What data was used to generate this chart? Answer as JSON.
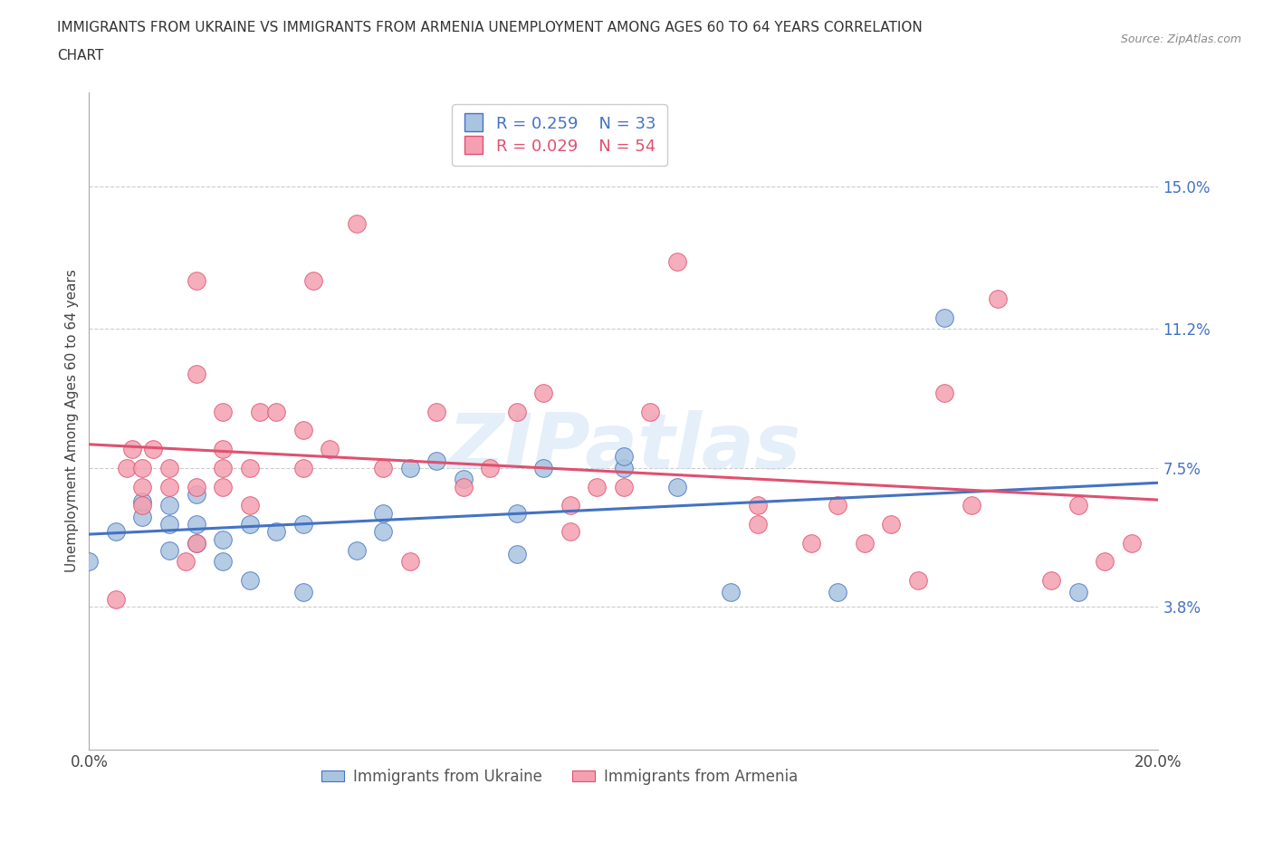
{
  "title_line1": "IMMIGRANTS FROM UKRAINE VS IMMIGRANTS FROM ARMENIA UNEMPLOYMENT AMONG AGES 60 TO 64 YEARS CORRELATION",
  "title_line2": "CHART",
  "source": "Source: ZipAtlas.com",
  "ylabel": "Unemployment Among Ages 60 to 64 years",
  "xlim": [
    0.0,
    0.2
  ],
  "ylim": [
    0.0,
    0.175
  ],
  "yticks": [
    0.038,
    0.075,
    0.112,
    0.15
  ],
  "ytick_labels": [
    "3.8%",
    "7.5%",
    "11.2%",
    "15.0%"
  ],
  "xticks": [
    0.0,
    0.05,
    0.1,
    0.15,
    0.2
  ],
  "xtick_labels": [
    "0.0%",
    "",
    "",
    "",
    "20.0%"
  ],
  "ukraine_color": "#a8c4e0",
  "armenia_color": "#f4a0b0",
  "ukraine_label": "Immigrants from Ukraine",
  "armenia_label": "Immigrants from Armenia",
  "ukraine_R": 0.259,
  "ukraine_N": 33,
  "armenia_R": 0.029,
  "armenia_N": 54,
  "ukraine_line_color": "#4472c4",
  "armenia_line_color": "#e05070",
  "watermark_text": "ZIPatlas",
  "ukraine_x": [
    0.0,
    0.005,
    0.01,
    0.01,
    0.015,
    0.015,
    0.015,
    0.02,
    0.02,
    0.02,
    0.025,
    0.025,
    0.03,
    0.03,
    0.035,
    0.04,
    0.04,
    0.05,
    0.055,
    0.055,
    0.06,
    0.065,
    0.07,
    0.08,
    0.08,
    0.085,
    0.1,
    0.1,
    0.11,
    0.12,
    0.14,
    0.16,
    0.185
  ],
  "ukraine_y": [
    0.05,
    0.058,
    0.062,
    0.066,
    0.053,
    0.06,
    0.065,
    0.055,
    0.06,
    0.068,
    0.05,
    0.056,
    0.045,
    0.06,
    0.058,
    0.042,
    0.06,
    0.053,
    0.058,
    0.063,
    0.075,
    0.077,
    0.072,
    0.052,
    0.063,
    0.075,
    0.075,
    0.078,
    0.07,
    0.042,
    0.042,
    0.115,
    0.042
  ],
  "armenia_x": [
    0.005,
    0.007,
    0.008,
    0.01,
    0.01,
    0.01,
    0.012,
    0.015,
    0.015,
    0.018,
    0.02,
    0.02,
    0.02,
    0.02,
    0.025,
    0.025,
    0.025,
    0.025,
    0.03,
    0.03,
    0.032,
    0.035,
    0.04,
    0.04,
    0.042,
    0.045,
    0.05,
    0.055,
    0.06,
    0.065,
    0.07,
    0.075,
    0.08,
    0.085,
    0.09,
    0.09,
    0.095,
    0.1,
    0.105,
    0.11,
    0.125,
    0.125,
    0.135,
    0.14,
    0.145,
    0.15,
    0.155,
    0.16,
    0.165,
    0.17,
    0.18,
    0.185,
    0.19,
    0.195
  ],
  "armenia_y": [
    0.04,
    0.075,
    0.08,
    0.065,
    0.07,
    0.075,
    0.08,
    0.07,
    0.075,
    0.05,
    0.055,
    0.07,
    0.1,
    0.125,
    0.07,
    0.075,
    0.08,
    0.09,
    0.065,
    0.075,
    0.09,
    0.09,
    0.075,
    0.085,
    0.125,
    0.08,
    0.14,
    0.075,
    0.05,
    0.09,
    0.07,
    0.075,
    0.09,
    0.095,
    0.058,
    0.065,
    0.07,
    0.07,
    0.09,
    0.13,
    0.06,
    0.065,
    0.055,
    0.065,
    0.055,
    0.06,
    0.045,
    0.095,
    0.065,
    0.12,
    0.045,
    0.065,
    0.05,
    0.055
  ]
}
